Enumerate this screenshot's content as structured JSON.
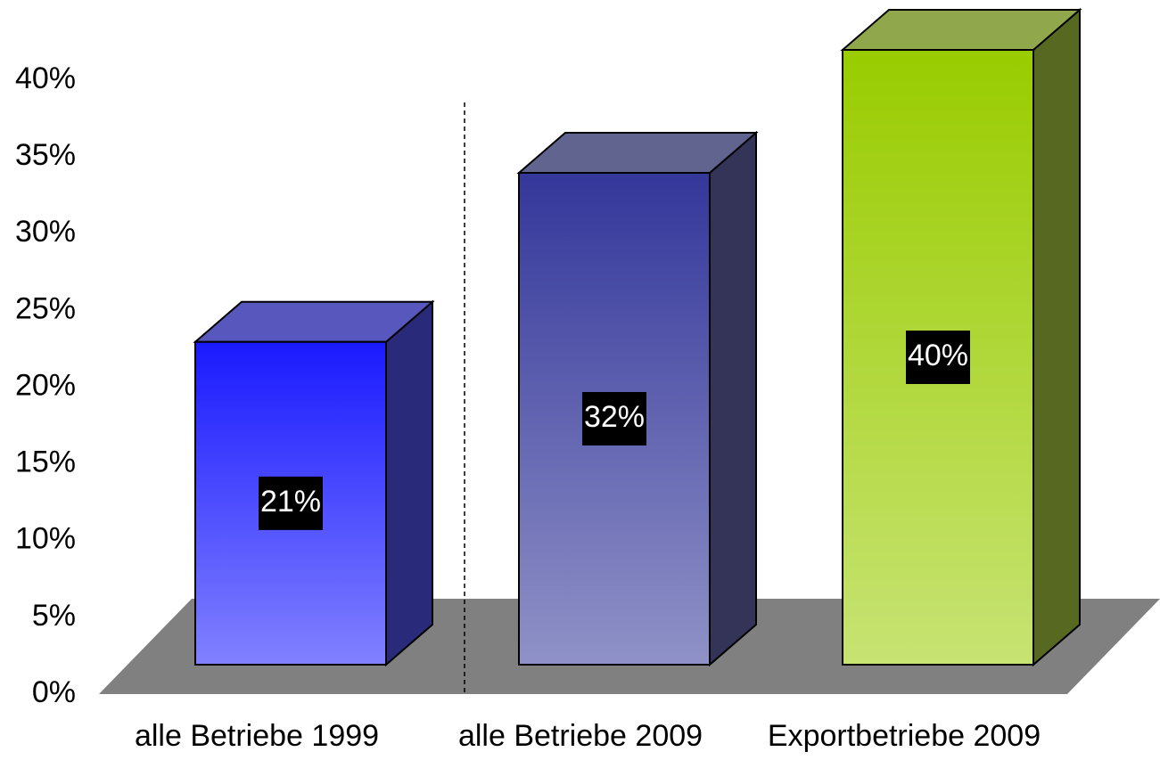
{
  "chart_data": {
    "type": "bar3d",
    "categories": [
      "alle Betriebe 1999",
      "alle Betriebe 2009",
      "Exportbetriebe 2009"
    ],
    "values": [
      21,
      32,
      40
    ],
    "value_labels": [
      "21%",
      "32%",
      "40%"
    ],
    "colors": [
      "#1a1aff",
      "#34379a",
      "#99cc00"
    ],
    "ylim": [
      0,
      40
    ],
    "yticks": [
      {
        "value": 0,
        "label": "0%"
      },
      {
        "value": 5,
        "label": "5%"
      },
      {
        "value": 10,
        "label": "10%"
      },
      {
        "value": 15,
        "label": "15%"
      },
      {
        "value": 20,
        "label": "20%"
      },
      {
        "value": 25,
        "label": "25%"
      },
      {
        "value": 30,
        "label": "30%"
      },
      {
        "value": 35,
        "label": "35%"
      },
      {
        "value": 40,
        "label": "40%"
      }
    ]
  }
}
